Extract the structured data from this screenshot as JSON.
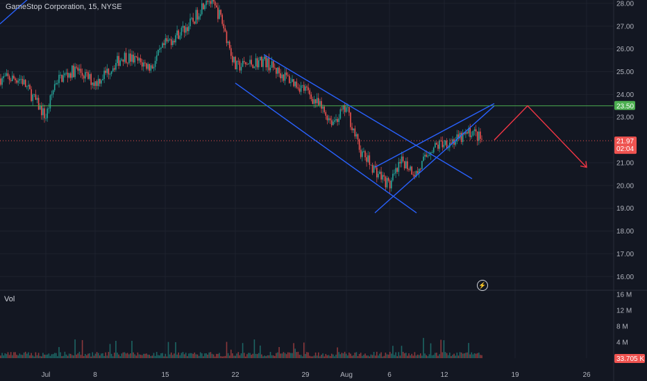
{
  "header": {
    "symbol": "GameStop Corporation, 15, NYSE"
  },
  "volume_pane": {
    "label": "Vol"
  },
  "alert": {
    "icon": "lightning-alert-icon",
    "glyph": "⚡"
  },
  "colors": {
    "up": "#26a69a",
    "down": "#ef5350",
    "channel": "#2962ff",
    "support": "#4caf50",
    "projection": "#f23645",
    "last_line": "#ef5350"
  },
  "chart_data": {
    "type": "candlestick",
    "title": "GameStop Corporation, 15, NYSE",
    "price_axis": {
      "ticks": [
        "28.00",
        "27.00",
        "26.00",
        "25.00",
        "24.00",
        "23.00",
        "21.00",
        "20.00",
        "19.00",
        "18.00",
        "17.00",
        "16.00"
      ],
      "ylim": [
        15.4,
        28.15
      ]
    },
    "volume_axis": {
      "ticks": [
        "16 M",
        "12 M",
        "8 M",
        "4 M"
      ],
      "ylim": [
        0,
        17
      ]
    },
    "x_axis": {
      "ticks": [
        "Jul",
        "8",
        "15",
        "22",
        "29",
        "Aug",
        "6",
        "12",
        "19",
        "26"
      ]
    },
    "support_level": {
      "value": "23.50",
      "value_num": 23.5
    },
    "last_price": {
      "value": "21.97",
      "countdown": "02:04",
      "value_num": 21.97
    },
    "last_volume": {
      "value": "33.705 K"
    },
    "price_path": [
      [
        "Jun 28",
        24.7
      ],
      [
        "Jul 1",
        23.0
      ],
      [
        "Jul 2",
        24.6
      ],
      [
        "Jul 5",
        25.1
      ],
      [
        "Jul 8",
        24.5
      ],
      [
        "Jul 10",
        25.7
      ],
      [
        "Jul 12",
        25.2
      ],
      [
        "Jul 15",
        26.2
      ],
      [
        "Jul 17",
        27.2
      ],
      [
        "Jul 18",
        28.3
      ],
      [
        "Jul 19",
        27.4
      ],
      [
        "Jul 22",
        25.2
      ],
      [
        "Jul 24",
        25.5
      ],
      [
        "Jul 25",
        25.0
      ],
      [
        "Jul 26",
        24.6
      ],
      [
        "Jul 29",
        24.2
      ],
      [
        "Jul 31",
        22.8
      ],
      [
        "Aug 1",
        23.4
      ],
      [
        "Aug 2",
        21.5
      ],
      [
        "Aug 5",
        20.7
      ],
      [
        "Aug 6",
        20.0
      ],
      [
        "Aug 7",
        21.1
      ],
      [
        "Aug 8",
        20.5
      ],
      [
        "Aug 9",
        21.6
      ],
      [
        "Aug 12",
        21.9
      ],
      [
        "Aug 13",
        22.0
      ],
      [
        "Aug 14",
        22.4
      ],
      [
        "Aug 15",
        21.97
      ]
    ],
    "drawings": {
      "channel_upper": [
        [
          "Jul 24",
          25.75
        ],
        [
          "Aug 14",
          20.3
        ]
      ],
      "channel_lower": [
        [
          "Jul 22",
          24.5
        ],
        [
          "Aug 8",
          18.8
        ]
      ],
      "wedge_upper": [
        [
          "Aug 5",
          20.8
        ],
        [
          "Aug 16",
          23.6
        ]
      ],
      "wedge_lower": [
        [
          "Aug 5",
          18.8
        ],
        [
          "Aug 16",
          23.5
        ]
      ],
      "projection": [
        [
          "Aug 16",
          22.0
        ],
        [
          "Aug 20",
          23.5
        ],
        [
          "Aug 26",
          20.8
        ]
      ]
    }
  }
}
